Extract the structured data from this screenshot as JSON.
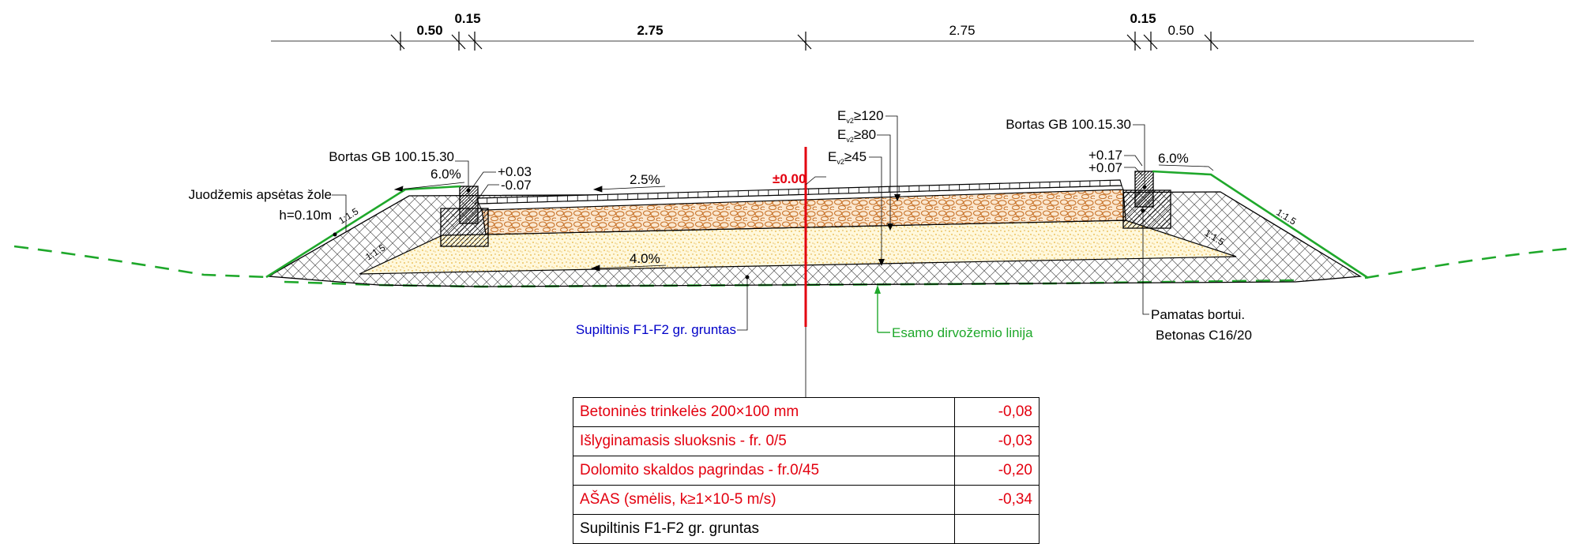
{
  "dimensions": [
    "0.50",
    "0.15",
    "2.75",
    "2.75",
    "0.15",
    "0.50"
  ],
  "labels": {
    "curb_left": "Bortas GB 100.15.30",
    "curb_right": "Bortas GB 100.15.30",
    "topsoil_line1": "Juodžemis apsėtas žole",
    "topsoil_line2": "h=0.10m",
    "slope_6_left": "6.0%",
    "slope_6_right": "6.0%",
    "slope_25": "2.5%",
    "slope_4": "4.0%",
    "ratio_ul": "1:1.5",
    "ratio_ll": "1:1.5",
    "ratio_ur": "1:1.5",
    "ratio_lr": "1:1.5",
    "elev_left_top": "+0.03",
    "elev_left_bot": "-0.07",
    "elev_right_top": "+0.17",
    "elev_right_bot": "+0.07",
    "zero": "±0.00",
    "ev120_main": "E",
    "ev120_sub": "v2",
    "ev120_val": "≥120",
    "ev80_main": "E",
    "ev80_sub": "v2",
    "ev80_val": "≥80",
    "ev45_main": "E",
    "ev45_sub": "v2",
    "ev45_val": "≥45",
    "fill_soil": "Supiltinis F1-F2 gr. gruntas",
    "existing_soil": "Esamo dirvožemio linija",
    "foundation_line1": "Pamatas bortui.",
    "foundation_line2": "Betonas C16/20"
  },
  "table": [
    {
      "name": "Betoninės trinkelės 200×100 mm",
      "value": "-0,08"
    },
    {
      "name": "Išlyginamasis sluoksnis - fr. 0/5",
      "value": "-0,03"
    },
    {
      "name": "Dolomito skaldos pagrindas - fr.0/45",
      "value": "-0,20"
    },
    {
      "name": "AŠAS (smėlis, k≥1×10-5 m/s)",
      "value": "-0,34"
    },
    {
      "name": "Supiltinis F1-F2 gr. gruntas",
      "value": ""
    }
  ],
  "colors": {
    "line": "#000000",
    "green": "#1fa82b",
    "red": "#e3000f",
    "blue": "#0000c8",
    "gravel": "#c8732a",
    "sand": "#e7b43a"
  }
}
